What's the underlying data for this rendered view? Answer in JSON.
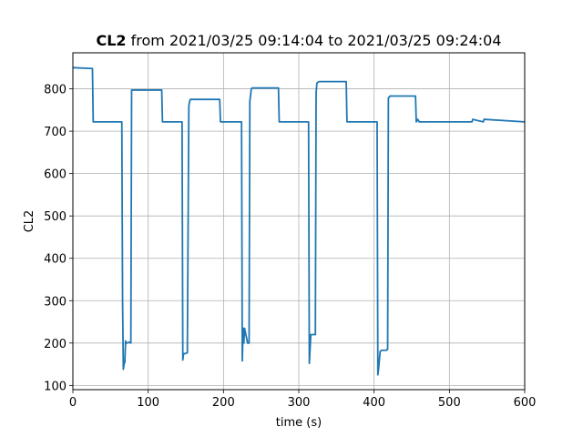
{
  "chart_data": {
    "type": "line",
    "title_bold": "CL2",
    "title_rest": " from 2021/03/25 09:14:04 to 2021/03/25 09:24:04",
    "xlabel": "time (s)",
    "ylabel": "CL2",
    "xlim": [
      0,
      600
    ],
    "ylim": [
      90,
      885
    ],
    "xticks": [
      0,
      100,
      200,
      300,
      400,
      500,
      600
    ],
    "yticks": [
      100,
      200,
      300,
      400,
      500,
      600,
      700,
      800
    ],
    "grid": true,
    "series": [
      {
        "color": "#1f77b4",
        "x": [
          0,
          26,
          27,
          65,
          66,
          67,
          68,
          69,
          70,
          71,
          72,
          75,
          77,
          78,
          80,
          118,
          119,
          145,
          146,
          147,
          149,
          152,
          154,
          155,
          156,
          158,
          195,
          196,
          224,
          225,
          226,
          227,
          228,
          232,
          234,
          235,
          237,
          238,
          273,
          274,
          313,
          314,
          316,
          322,
          323,
          324,
          325,
          327,
          363,
          364,
          404,
          405,
          406,
          408,
          410,
          416,
          418,
          419,
          421,
          455,
          456,
          458,
          460,
          530,
          531,
          545,
          546,
          600
        ],
        "y": [
          850,
          848,
          722,
          722,
          300,
          138,
          150,
          155,
          205,
          200,
          200,
          202,
          200,
          797,
          797,
          797,
          722,
          722,
          160,
          175,
          175,
          177,
          760,
          770,
          775,
          775,
          775,
          722,
          722,
          158,
          235,
          200,
          235,
          200,
          200,
          770,
          800,
          802,
          802,
          722,
          722,
          152,
          220,
          220,
          790,
          813,
          815,
          817,
          817,
          722,
          722,
          125,
          140,
          180,
          183,
          183,
          185,
          778,
          783,
          783,
          722,
          728,
          722,
          722,
          728,
          722,
          728,
          722
        ]
      }
    ]
  }
}
